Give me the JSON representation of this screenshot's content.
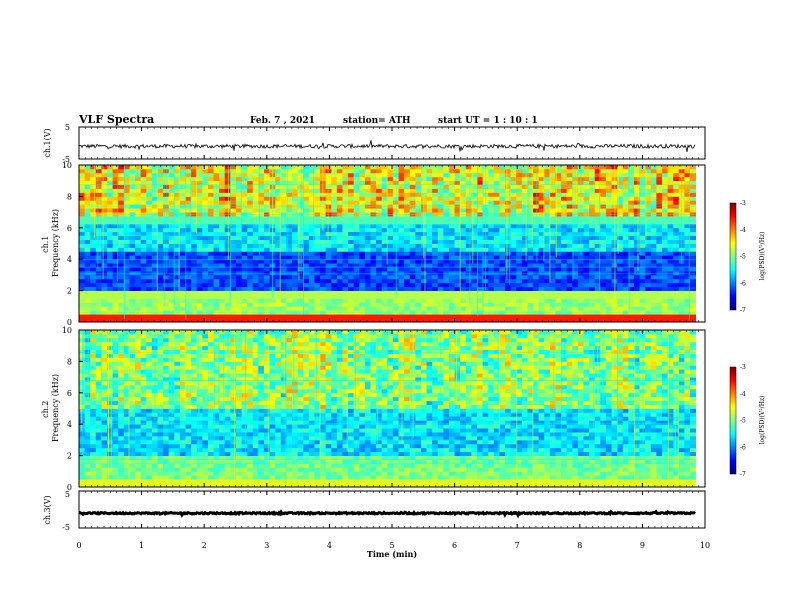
{
  "header": {
    "title": "VLF Spectra",
    "date": "Feb. 7 , 2021",
    "station": "station= ATH",
    "start": "start  UT =   1 : 10 : 1"
  },
  "chart_data": [
    {
      "type": "line",
      "panel": "ch1-waveform",
      "ylabel": "ch.1(V)",
      "ylim": [
        -5,
        5
      ],
      "yticks": [
        "5",
        "-5"
      ],
      "xlim": [
        0,
        10
      ],
      "baseline": -1,
      "noise_amplitude": 1
    },
    {
      "type": "heatmap",
      "panel": "ch1-spectrogram",
      "ylabel": "ch.1\nFrequency (kHz)",
      "ylim": [
        0,
        10
      ],
      "yticks": [
        "0",
        "2",
        "4",
        "6",
        "8",
        "10"
      ],
      "xlim": [
        0,
        10
      ],
      "colorbar": {
        "label": "log(PSD)(V²/Hz)",
        "range": [
          -7,
          -3
        ],
        "ticks": [
          "-3",
          "-4",
          "-5",
          "-6",
          "-7"
        ]
      }
    },
    {
      "type": "heatmap",
      "panel": "ch2-spectrogram",
      "ylabel": "ch.2\nFrequency (kHz)",
      "ylim": [
        0,
        10
      ],
      "yticks": [
        "0",
        "2",
        "4",
        "6",
        "8",
        "10"
      ],
      "xlim": [
        0,
        10
      ],
      "colorbar": {
        "label": "log(PSD)(V²/Hz)",
        "range": [
          -7,
          -3
        ],
        "ticks": [
          "-3",
          "-4",
          "-5",
          "-6",
          "-7"
        ]
      }
    },
    {
      "type": "line",
      "panel": "ch3-waveform",
      "ylabel": "ch.3(V)",
      "ylim": [
        -5,
        5
      ],
      "yticks": [
        "5",
        "-5"
      ],
      "xlim": [
        0,
        10
      ],
      "baseline": -1,
      "noise_amplitude": 0.3
    }
  ],
  "xaxis": {
    "label": "Time (min)",
    "ticks": [
      "0",
      "1",
      "2",
      "3",
      "4",
      "5",
      "6",
      "7",
      "8",
      "9",
      "10"
    ]
  },
  "colors": {
    "spectro_low": "#00007f",
    "spectro_high": "#7f0000",
    "trace": "#000000"
  }
}
